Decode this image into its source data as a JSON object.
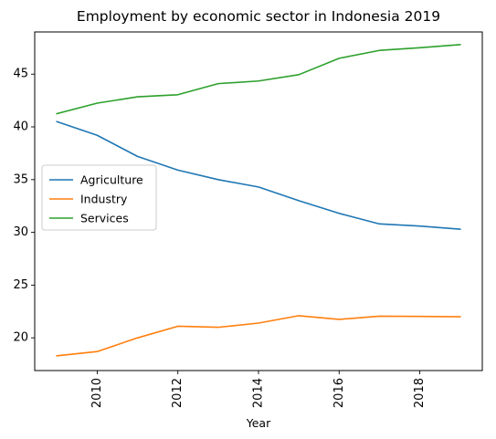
{
  "chart_data": {
    "type": "line",
    "title": "Employment by economic sector in Indonesia 2019",
    "xlabel": "Year",
    "ylabel": "",
    "x": [
      2009,
      2010,
      2011,
      2012,
      2013,
      2014,
      2015,
      2016,
      2017,
      2018,
      2019
    ],
    "xlim": [
      2008.45,
      2019.55
    ],
    "ylim": [
      16.9,
      49.0
    ],
    "xticks": [
      2010,
      2012,
      2014,
      2016,
      2018
    ],
    "yticks": [
      20,
      25,
      30,
      35,
      40,
      45
    ],
    "xtick_labels": [
      "2010",
      "2012",
      "2014",
      "2016",
      "2018"
    ],
    "ytick_labels": [
      "20",
      "25",
      "30",
      "35",
      "40",
      "45"
    ],
    "grid": false,
    "legend_position": "center-left",
    "series": [
      {
        "name": "Agriculture",
        "color": "#1f77b4",
        "values": [
          40.5,
          39.2,
          37.2,
          35.9,
          35.0,
          34.3,
          33.0,
          31.8,
          30.8,
          30.6,
          30.3
        ]
      },
      {
        "name": "Industry",
        "color": "#ff7f0e",
        "values": [
          18.3,
          18.7,
          20.0,
          21.1,
          21.0,
          21.4,
          22.1,
          21.75,
          22.05,
          22.03,
          22.0
        ]
      },
      {
        "name": "Services",
        "color": "#2ca02c",
        "values": [
          41.25,
          42.25,
          42.85,
          43.05,
          44.1,
          44.35,
          44.95,
          46.5,
          47.25,
          47.5,
          47.8
        ]
      }
    ]
  }
}
